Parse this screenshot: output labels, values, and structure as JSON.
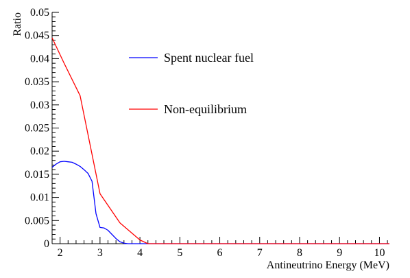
{
  "chart_data": {
    "type": "line",
    "title": "",
    "xlabel": "Antineutrino Energy (MeV)",
    "ylabel": "Ratio",
    "xlim": [
      1.8,
      10.25
    ],
    "ylim": [
      0,
      0.05
    ],
    "x_ticks": [
      2,
      3,
      4,
      5,
      6,
      7,
      8,
      9,
      10
    ],
    "x_tick_labels": [
      "2",
      "3",
      "4",
      "5",
      "6",
      "7",
      "8",
      "9",
      "10"
    ],
    "y_ticks": [
      0,
      0.005,
      0.01,
      0.015,
      0.02,
      0.025,
      0.03,
      0.035,
      0.04,
      0.045,
      0.05
    ],
    "y_tick_labels": [
      "0",
      "0.005",
      "0.01",
      "0.015",
      "0.02",
      "0.025",
      "0.03",
      "0.035",
      "0.04",
      "0.045",
      "0.05"
    ],
    "grid": false,
    "legend_position": "upper-middle",
    "series": [
      {
        "name": "Spent nuclear fuel",
        "color": "#0000ff",
        "x": [
          1.8,
          1.9,
          2.0,
          2.1,
          2.2,
          2.3,
          2.4,
          2.5,
          2.6,
          2.7,
          2.8,
          2.9,
          3.0,
          3.1,
          3.2,
          3.3,
          3.4,
          3.5,
          3.6,
          3.7,
          3.8,
          3.9,
          4.0,
          4.2,
          5.0,
          6.0,
          7.0,
          8.0,
          9.0,
          10.25
        ],
        "y": [
          0.0165,
          0.0172,
          0.0177,
          0.0178,
          0.0177,
          0.0176,
          0.0172,
          0.0167,
          0.016,
          0.0152,
          0.0135,
          0.0065,
          0.0035,
          0.0034,
          0.0029,
          0.002,
          0.0011,
          0.0004,
          0.0001,
          0.0,
          0.0,
          0.0,
          0.0,
          0.0,
          0.0,
          0.0,
          0.0,
          0.0,
          0.0,
          0.0
        ]
      },
      {
        "name": "Non-equilibrium",
        "color": "#ff0000",
        "x": [
          1.8,
          2.1,
          2.5,
          3.0,
          3.5,
          4.0,
          4.2,
          5.0,
          6.0,
          7.0,
          8.0,
          9.0,
          10.0,
          10.25
        ],
        "y": [
          0.0445,
          0.039,
          0.032,
          0.0108,
          0.0045,
          0.0008,
          0.0,
          0.0,
          0.0,
          0.0,
          0.0,
          0.0,
          0.0,
          0.0
        ]
      }
    ]
  }
}
